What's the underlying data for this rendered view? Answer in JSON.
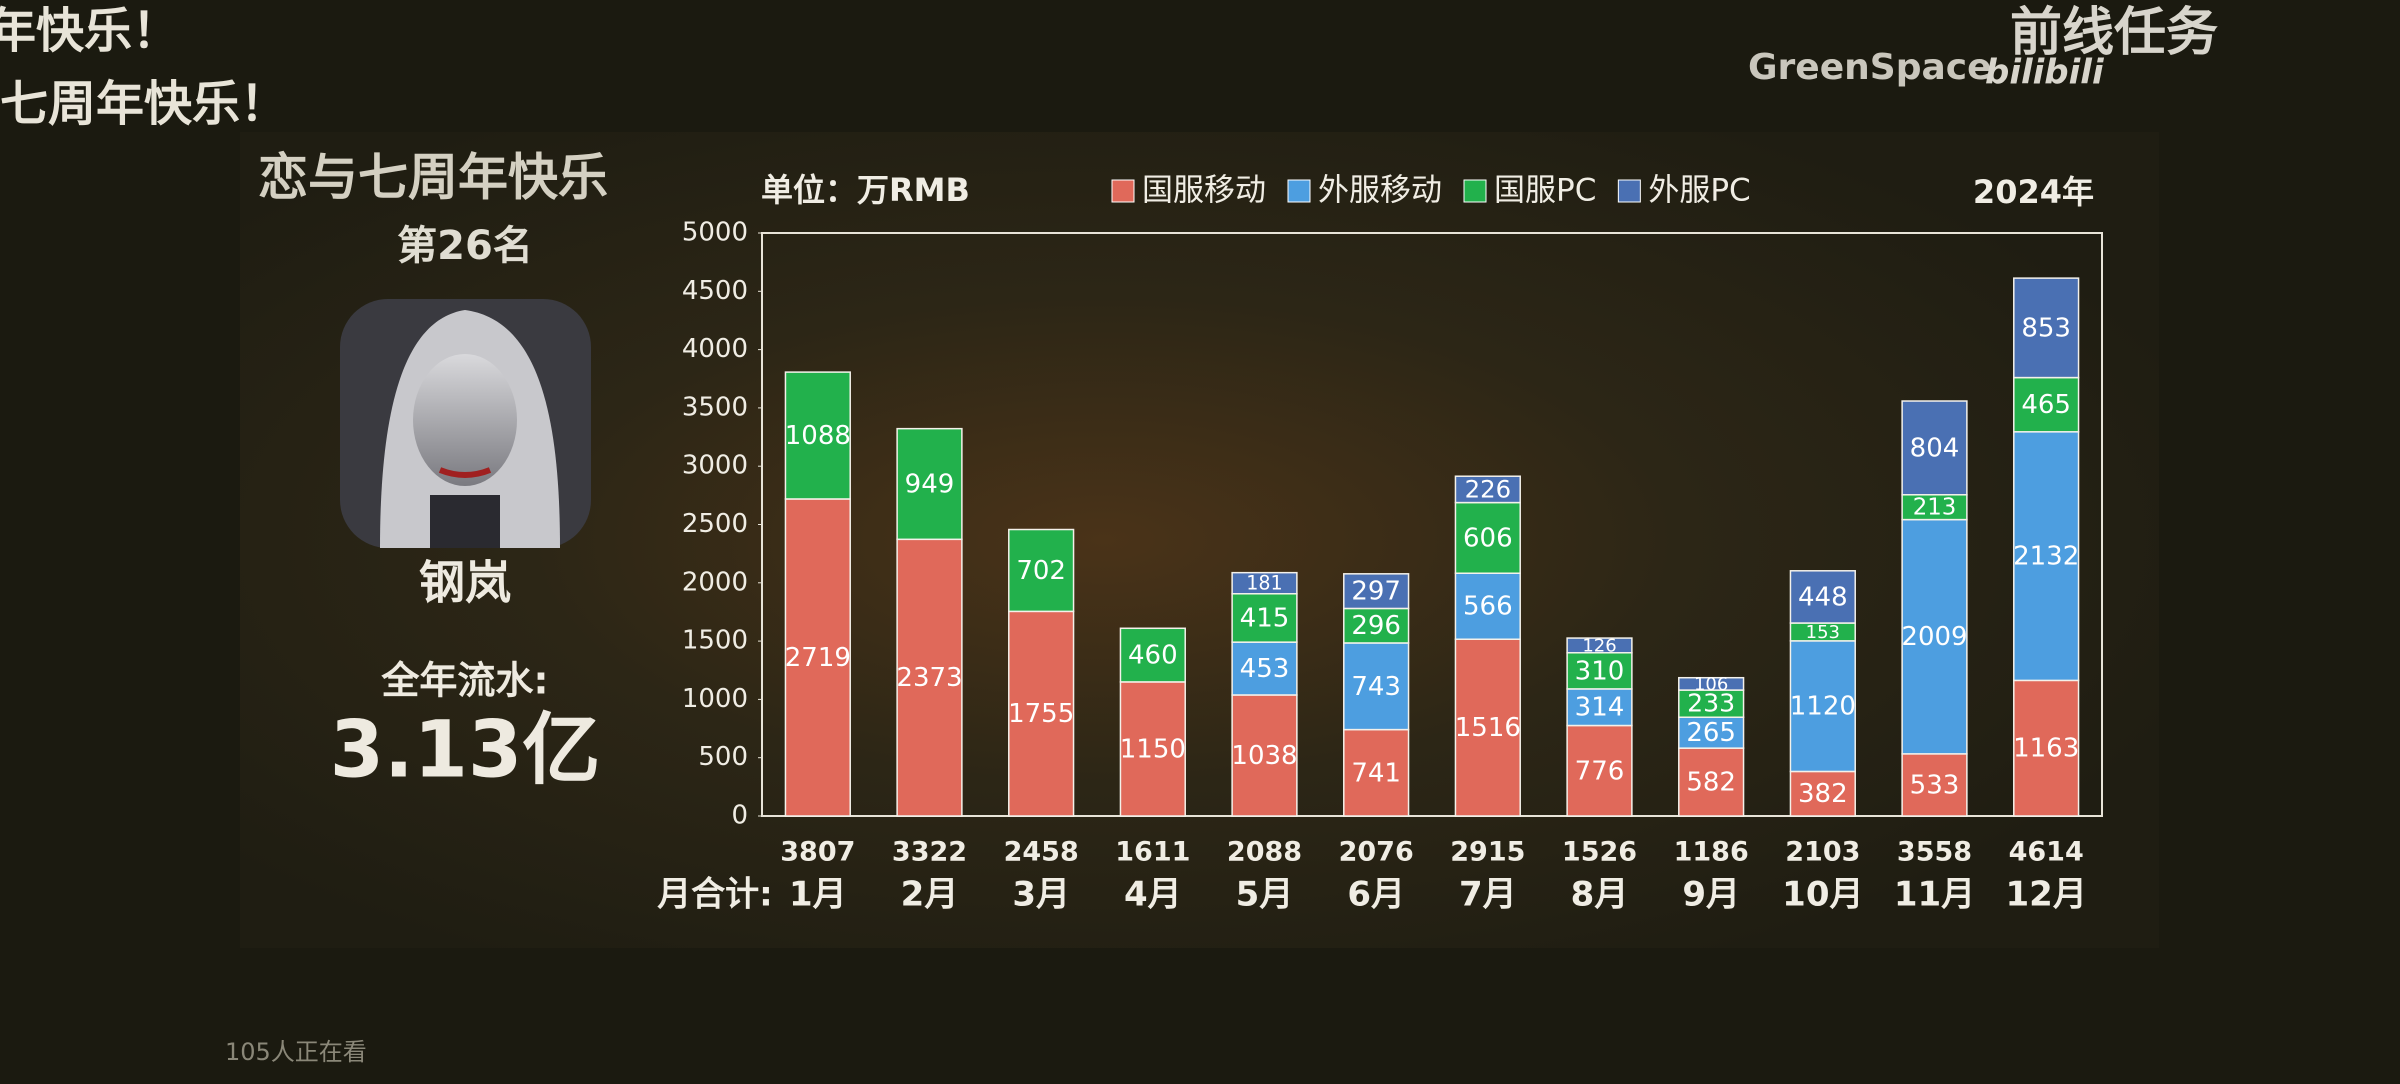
{
  "page": {
    "danmaku": [
      "年快乐！",
      "七周年快乐！"
    ],
    "watermark": "GreenSpace",
    "channel": "前线任务",
    "logo": "bilibili",
    "banner": "恋与七周年快乐",
    "rank": "第26名",
    "game": "钢岚",
    "annual_label": "全年流水:",
    "annual_value": "3.13亿",
    "viewers": "105人正在看"
  },
  "chart_data": {
    "type": "stacked_bar",
    "unit": "单位：万RMB",
    "year": "2024年",
    "categories": [
      "1月",
      "2月",
      "3月",
      "4月",
      "5月",
      "6月",
      "7月",
      "8月",
      "9月",
      "10月",
      "11月",
      "12月"
    ],
    "totals_label": "月合计:",
    "totals": [
      3807,
      3322,
      2458,
      1611,
      2088,
      2076,
      2915,
      1526,
      1186,
      2103,
      3558,
      4614
    ],
    "series": [
      {
        "name": "国服移动",
        "color": "#e0695a",
        "values": [
          2719,
          2373,
          1755,
          1150,
          1038,
          741,
          1516,
          776,
          582,
          382,
          533,
          1163
        ]
      },
      {
        "name": "外服移动",
        "color": "#4d9ee0",
        "values": [
          null,
          null,
          null,
          null,
          453,
          743,
          566,
          314,
          265,
          1120,
          2009,
          2132
        ]
      },
      {
        "name": "国服PC",
        "color": "#22b14c",
        "values": [
          1088,
          949,
          702,
          460,
          415,
          296,
          606,
          310,
          233,
          153,
          213,
          465
        ]
      },
      {
        "name": "外服PC",
        "color": "#4a70b3",
        "values": [
          null,
          null,
          null,
          null,
          181,
          297,
          226,
          126,
          106,
          448,
          804,
          853
        ]
      }
    ],
    "ylim": [
      0,
      5000
    ],
    "yticks": [
      0,
      500,
      1000,
      1500,
      2000,
      2500,
      3000,
      3500,
      4000,
      4500,
      5000
    ]
  }
}
